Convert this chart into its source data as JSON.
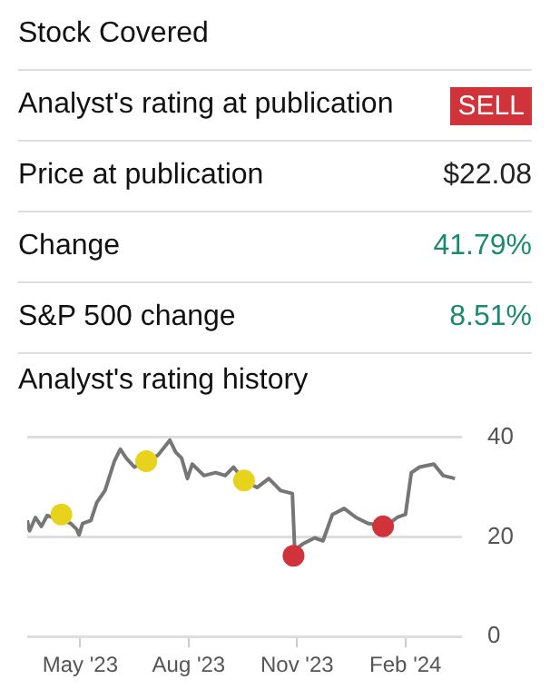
{
  "chart_data": [
    {
      "type": "other",
      "categories": [
        "Stock Covered",
        "Analyst's rating at publication",
        "Price at publication",
        "Change",
        "S&P 500 change"
      ],
      "value_labels": [
        null,
        "SELL",
        "$22.08",
        "41.79%",
        "8.51%"
      ],
      "colors": [
        null,
        "#d0343a",
        "#222222",
        "#1a8a6e",
        "#1a8a6e"
      ]
    },
    {
      "type": "line",
      "title": "Analyst's rating history",
      "xlim": [
        "2023-03-17",
        "2024-03-20"
      ],
      "xticks": [
        {
          "value": "2023-05-01",
          "label": "May '23"
        },
        {
          "value": "2023-08-01",
          "label": "Aug '23"
        },
        {
          "value": "2023-11-01",
          "label": "Nov '23"
        },
        {
          "value": "2024-02-01",
          "label": "Feb '24"
        }
      ],
      "ylim": [
        0,
        40
      ],
      "yticks": [
        0,
        20,
        40
      ],
      "grid": "y",
      "legend": false,
      "series": [
        {
          "type": "line",
          "color": "#767676",
          "marker": "none",
          "x": [
            "2023-03-17",
            "2023-03-19",
            "2023-03-24",
            "2023-03-29",
            "2023-04-03",
            "2023-04-15",
            "2023-04-23",
            "2023-04-28",
            "2023-04-30",
            "2023-05-03",
            "2023-05-10",
            "2023-05-15",
            "2023-05-22",
            "2023-05-30",
            "2023-06-04",
            "2023-06-09",
            "2023-06-16",
            "2023-06-26",
            "2023-07-06",
            "2023-07-16",
            "2023-07-21",
            "2023-07-26",
            "2023-07-31",
            "2023-08-04",
            "2023-08-14",
            "2023-08-24",
            "2023-09-01",
            "2023-09-08",
            "2023-09-18",
            "2023-09-28",
            "2023-10-08",
            "2023-10-18",
            "2023-10-28",
            "2023-10-30",
            "2023-11-06",
            "2023-11-16",
            "2023-11-23",
            "2023-12-01",
            "2023-12-11",
            "2023-12-21",
            "2023-12-31",
            "2024-01-15",
            "2024-01-25",
            "2024-02-01",
            "2024-02-06",
            "2024-02-13",
            "2024-02-25",
            "2024-03-04",
            "2024-03-14"
          ],
          "values": [
            23.3,
            21.2,
            23.9,
            22.1,
            24.3,
            null,
            22.7,
            21.5,
            20.4,
            22.7,
            23.3,
            26.9,
            29.3,
            35.2,
            37.6,
            35.8,
            34.0,
            null,
            36.4,
            39.4,
            37.0,
            35.8,
            31.7,
            34.6,
            32.3,
            32.9,
            32.3,
            34.0,
            31.1,
            29.9,
            31.7,
            29.3,
            28.7,
            17.4,
            18.6,
            19.8,
            19.2,
            24.5,
            25.7,
            23.9,
            22.7,
            22.1,
            23.9,
            24.5,
            32.9,
            34.0,
            34.6,
            32.3,
            31.7
          ]
        },
        {
          "type": "scatter",
          "color": "#e8d31c",
          "marker": "circle",
          "x": [
            "2023-04-15",
            "2023-06-26",
            "2023-09-17"
          ],
          "values": [
            24.5,
            35.2,
            31.3
          ]
        },
        {
          "type": "scatter",
          "color": "#d0343a",
          "marker": "circle",
          "x": [
            "2023-10-29",
            "2024-01-13"
          ],
          "values": [
            16.2,
            22.1
          ]
        }
      ]
    }
  ]
}
